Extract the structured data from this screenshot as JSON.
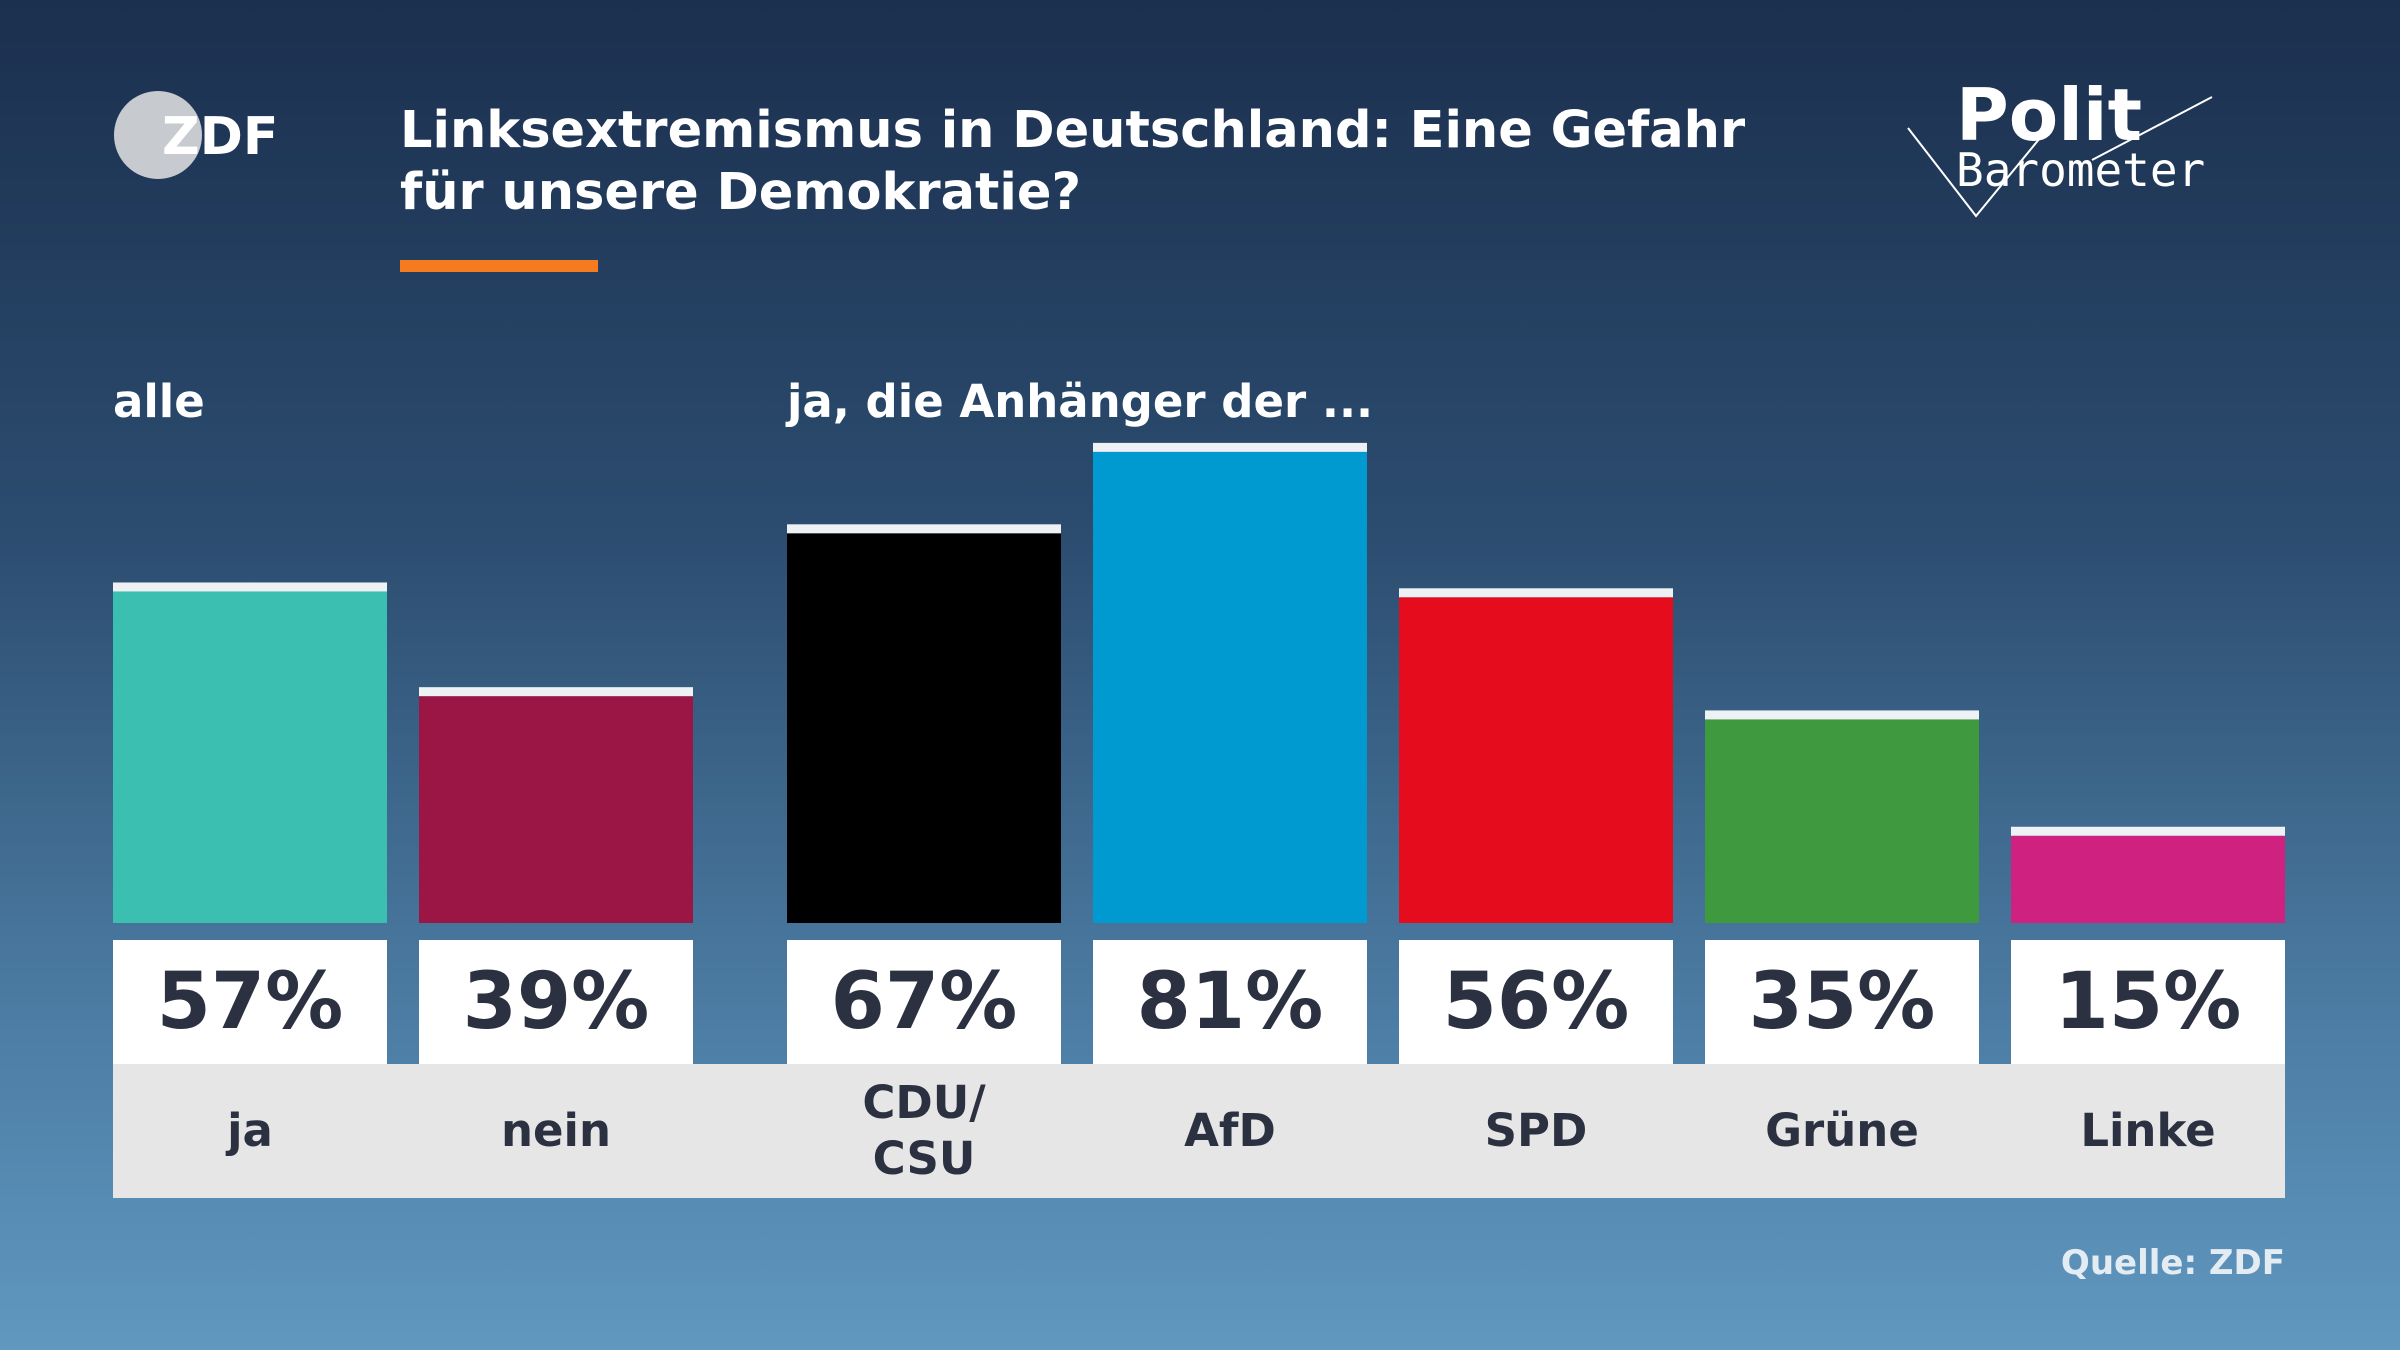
{
  "logo": "ZDF",
  "brand": {
    "line1": "Polit",
    "line2": "Barometer"
  },
  "chart_data": {
    "type": "bar",
    "title": "Linksextremismus in Deutschland: Eine Gefahr für unsere Demokratie?",
    "group_labels": [
      "alle",
      "ja, die Anhänger der ..."
    ],
    "categories": [
      "ja",
      "nein",
      "CDU/\nCSU",
      "AfD",
      "SPD",
      "Grüne",
      "Linke"
    ],
    "values": [
      57,
      39,
      67,
      81,
      56,
      35,
      15
    ],
    "value_labels": [
      "57%",
      "39%",
      "67%",
      "81%",
      "56%",
      "35%",
      "15%"
    ],
    "colors": [
      "#3bbfb0",
      "#9b1545",
      "#000000",
      "#009ad0",
      "#e50c1d",
      "#3f9a3f",
      "#cf2280"
    ],
    "source": "Quelle: ZDF"
  }
}
